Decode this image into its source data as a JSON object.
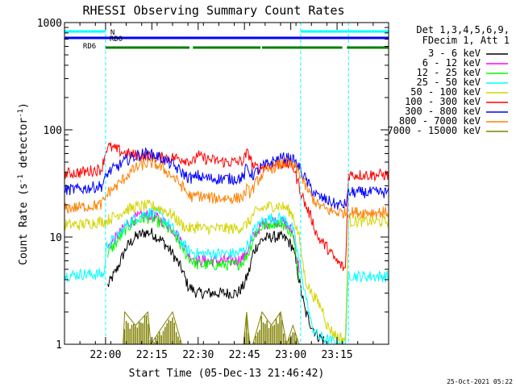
{
  "chart_data": {
    "type": "line",
    "title": "RHESSI Observing Summary Count Rates",
    "xlabel": "Start Time (05-Dec-13 21:46:42)",
    "ylabel_main": "Count Rate (s",
    "ylabel_sup1": "-1",
    "ylabel_mid": " detector",
    "ylabel_sup2": "-1",
    "ylabel_end": ")",
    "yscale": "log",
    "ylim": [
      1,
      1000
    ],
    "xlim_min": [
      0,
      105
    ],
    "x_ticks": [
      {
        "t": 13.3,
        "label": "22:00"
      },
      {
        "t": 28.3,
        "label": "22:15"
      },
      {
        "t": 43.3,
        "label": "22:30"
      },
      {
        "t": 58.3,
        "label": "22:45"
      },
      {
        "t": 73.3,
        "label": "23:00"
      },
      {
        "t": 88.3,
        "label": "23:15"
      }
    ],
    "y_ticks": [
      {
        "v": 1,
        "label": "1"
      },
      {
        "v": 10,
        "label": "10"
      },
      {
        "v": 100,
        "label": "100"
      },
      {
        "v": 1000,
        "label": "1000"
      }
    ],
    "legend_title1": "Det 1,3,4,5,6,9,",
    "legend_title2": "FDecim 1, Att 1",
    "series": [
      {
        "name": "3 - 6 keV",
        "color": "#000000",
        "t": [
          14,
          17,
          20,
          23,
          26,
          28,
          30,
          32,
          35,
          38,
          40,
          43,
          45,
          48,
          52,
          56,
          58,
          60,
          61,
          62,
          64,
          67,
          70,
          72,
          74,
          76,
          78,
          80,
          82,
          84
        ],
        "v": [
          3.5,
          5,
          8,
          10,
          11,
          11,
          10,
          9,
          7,
          5,
          3.5,
          3,
          3,
          3,
          3,
          3,
          3.5,
          5,
          7,
          8,
          9.5,
          10,
          10,
          9.5,
          8,
          4,
          2,
          1.5,
          1.2,
          1.1
        ]
      },
      {
        "name": "6 - 12 keV",
        "color": "#ff00ff",
        "t": [
          14,
          17,
          20,
          23,
          26,
          28,
          30,
          32,
          35,
          38,
          40,
          43,
          45,
          48,
          52,
          56,
          58,
          60,
          61,
          62,
          64,
          67,
          70,
          72,
          74,
          76
        ],
        "v": [
          8,
          10,
          13,
          15,
          16,
          16,
          15,
          14,
          12,
          9,
          7,
          6,
          6,
          6,
          6,
          6,
          6.5,
          8,
          10,
          11,
          13,
          14,
          14,
          13,
          11,
          5
        ]
      },
      {
        "name": "12 - 25 keV",
        "color": "#00ff00",
        "t": [
          14,
          17,
          20,
          23,
          26,
          28,
          30,
          32,
          35,
          38,
          40,
          43,
          45,
          48,
          52,
          56,
          58,
          60,
          61,
          62,
          64,
          67,
          70,
          72,
          74,
          76
        ],
        "v": [
          7,
          9,
          12,
          14,
          15,
          15,
          14,
          13,
          11,
          8,
          6.5,
          5.5,
          5.5,
          5.5,
          5.5,
          5.5,
          6,
          7.5,
          9.5,
          11,
          12.5,
          13.5,
          13.5,
          12.5,
          10,
          4.5
        ]
      },
      {
        "name": "25 - 50 keV",
        "color": "#00ffff",
        "t": [
          -5,
          5,
          12.9,
          13.5,
          14,
          17,
          20,
          23,
          26,
          28,
          30,
          32,
          35,
          38,
          40,
          43,
          45,
          48,
          52,
          56,
          58,
          60,
          61,
          62,
          64,
          67,
          70,
          72,
          74,
          76,
          78,
          80,
          82,
          85,
          88,
          91,
          92,
          95,
          105
        ],
        "v": [
          4.2,
          4.5,
          4.5,
          8,
          8.5,
          10,
          13,
          15,
          16.5,
          17,
          16.5,
          15,
          12,
          9,
          7.5,
          7,
          7,
          7,
          7,
          7,
          7.5,
          9,
          11,
          12,
          14,
          15,
          15,
          14,
          12,
          6,
          3,
          1.5,
          1.2,
          1.1,
          1.05,
          1.0,
          4.5,
          4.3,
          4.3
        ]
      },
      {
        "name": "50 - 100 keV",
        "color": "#d4d400",
        "t": [
          -5,
          5,
          12,
          13.5,
          14,
          17,
          20,
          23,
          26,
          28,
          30,
          32,
          35,
          38,
          40,
          42,
          43,
          44,
          48,
          52,
          56,
          58,
          60,
          61,
          62,
          64,
          67,
          70,
          72,
          74,
          76,
          78,
          80,
          82,
          84,
          85,
          88,
          91,
          92,
          95,
          105
        ],
        "v": [
          13,
          13,
          14,
          14,
          14.5,
          16,
          18,
          19,
          19.5,
          19.5,
          19,
          18,
          16,
          13,
          12,
          12,
          13,
          12,
          12,
          12,
          12,
          12.5,
          14,
          16,
          17,
          18.5,
          19.5,
          19.5,
          18.5,
          16,
          10,
          4,
          3,
          2.5,
          2,
          1.5,
          1.2,
          1.1,
          14,
          14,
          14
        ]
      },
      {
        "name": "100 - 300 keV",
        "color": "#ff0000",
        "t": [
          -5,
          5,
          12,
          13.5,
          14,
          17,
          20,
          23,
          26,
          28,
          30,
          32,
          35,
          38,
          40,
          42,
          43,
          44,
          48,
          52,
          56,
          58,
          59,
          60,
          61,
          62,
          64,
          67,
          70,
          72,
          74,
          76,
          78,
          80,
          82,
          85,
          88,
          91,
          92,
          95,
          105
        ],
        "v": [
          38,
          40,
          43,
          65,
          70,
          65,
          60,
          58,
          57,
          56,
          55,
          55,
          55,
          54,
          52,
          50,
          60,
          55,
          52,
          50,
          50,
          52,
          60,
          58,
          46,
          44,
          45,
          47,
          48,
          48,
          46,
          30,
          20,
          15,
          10,
          8,
          6,
          5,
          38,
          38,
          38
        ]
      },
      {
        "name": "300 - 800 keV",
        "color": "#0000ff",
        "t": [
          -5,
          5,
          12,
          13.5,
          14,
          17,
          20,
          23,
          26,
          28,
          30,
          32,
          35,
          38,
          40,
          42,
          43,
          44,
          48,
          52,
          56,
          58,
          59,
          60,
          61,
          62,
          64,
          67,
          70,
          72,
          74,
          76,
          78,
          80,
          82,
          85,
          88,
          91,
          92,
          95,
          105
        ],
        "v": [
          27,
          28,
          30,
          36,
          40,
          45,
          52,
          57,
          60,
          59,
          57,
          53,
          47,
          40,
          36,
          35,
          38,
          36,
          35,
          35,
          35,
          36,
          45,
          40,
          38,
          40,
          45,
          50,
          54,
          55,
          52,
          45,
          35,
          28,
          24,
          22,
          20,
          20,
          26,
          26,
          26
        ]
      },
      {
        "name": "800 - 7000 keV",
        "color": "#ff8000",
        "t": [
          -5,
          5,
          12,
          13.5,
          14,
          17,
          20,
          23,
          26,
          28,
          30,
          32,
          35,
          38,
          40,
          42,
          43,
          44,
          48,
          52,
          56,
          58,
          59,
          60,
          61,
          62,
          64,
          67,
          70,
          72,
          74,
          76,
          78,
          80,
          82,
          85,
          88,
          91,
          92,
          95,
          105
        ],
        "v": [
          18,
          19,
          20,
          24,
          26,
          30,
          37,
          44,
          48,
          49,
          47,
          43,
          37,
          30,
          25,
          23,
          25,
          24,
          23,
          23,
          23,
          24,
          28,
          26,
          28,
          32,
          38,
          44,
          48,
          49,
          46,
          40,
          30,
          24,
          20,
          18,
          17,
          17,
          17,
          17,
          17
        ]
      },
      {
        "name": "7000 - 15000 keV",
        "color": "#808000",
        "t": [
          5,
          12,
          19,
          19.5,
          23,
          27,
          28,
          32,
          35,
          38,
          40,
          43,
          50,
          55,
          58,
          59,
          60,
          61,
          64,
          67,
          70,
          72,
          74,
          76,
          80,
          85,
          105
        ],
        "v": [
          1,
          1,
          1,
          2,
          1.5,
          2,
          1,
          1.5,
          2,
          1,
          1,
          1,
          1,
          1,
          1,
          2,
          1,
          1,
          2,
          1.5,
          2,
          1,
          1.5,
          1,
          1,
          1,
          1
        ]
      }
    ],
    "state_bars": [
      {
        "label": "N",
        "color": "#00ffff",
        "segments": [
          [
            -5,
            13.3
          ],
          [
            76.5,
            105
          ]
        ]
      },
      {
        "label": "RD0",
        "color": "#0000ff",
        "segments": [
          [
            -5,
            105
          ]
        ]
      },
      {
        "label": "RD6",
        "color": "#008000",
        "segments": [
          [
            13.3,
            40.5
          ],
          [
            41.6,
            63.5
          ],
          [
            64.0,
            90.0
          ],
          [
            91.5,
            105
          ]
        ]
      }
    ],
    "state_bar_labels": {
      "n": "N",
      "rd0": "RD0",
      "rd6": "RD6"
    },
    "attenuator_lines": [
      13.3,
      76.5,
      92.0
    ],
    "timestamp": "25-Oct-2021 05:22"
  }
}
